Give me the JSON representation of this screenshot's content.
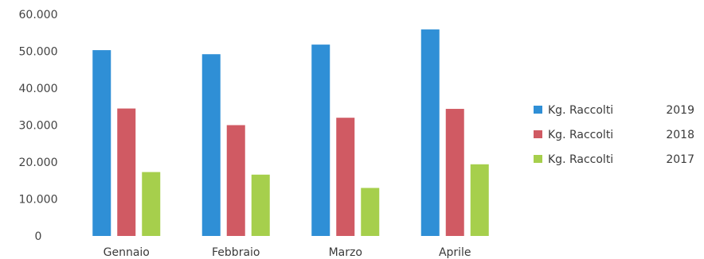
{
  "chart_data": {
    "type": "bar",
    "categories": [
      "Gennaio",
      "Febbraio",
      "Marzo",
      "Aprile"
    ],
    "series": [
      {
        "name": "Kg. Raccolti",
        "year": "2019",
        "color": "#2f8fd6",
        "values": [
          50300,
          49200,
          51800,
          55900
        ]
      },
      {
        "name": "Kg. Raccolti",
        "year": "2018",
        "color": "#d05a63",
        "values": [
          34500,
          30000,
          32000,
          34400
        ]
      },
      {
        "name": "Kg. Raccolti",
        "year": "2017",
        "color": "#a6cf4c",
        "values": [
          17300,
          16600,
          13000,
          19400
        ]
      }
    ],
    "y_ticks": [
      "0",
      "10.000",
      "20.000",
      "30.000",
      "40.000",
      "50.000",
      "60.000"
    ],
    "ylim": [
      0,
      60000
    ],
    "grid": false,
    "legend_position": "right"
  }
}
